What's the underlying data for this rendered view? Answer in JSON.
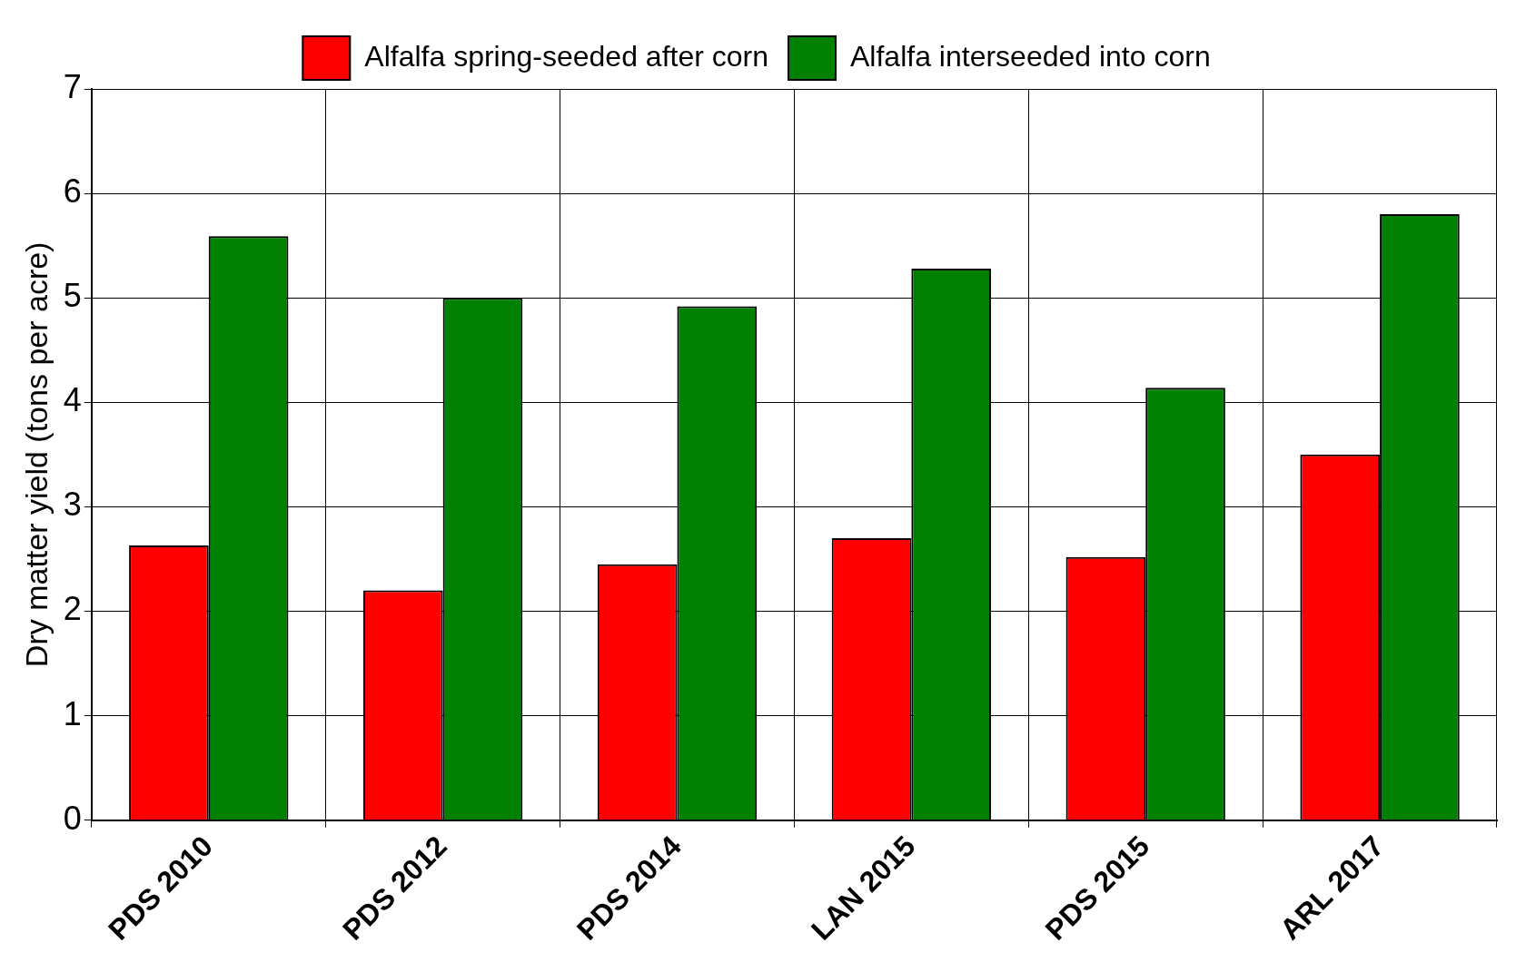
{
  "chart_data": {
    "type": "bar",
    "ylabel": "Dry matter yield (tons per acre)",
    "categories": [
      "PDS 2010",
      "PDS 2012",
      "PDS 2014",
      "LAN 2015",
      "PDS 2015",
      "ARL 2017"
    ],
    "series": [
      {
        "name": "Alfalfa spring-seeded after corn",
        "color": "#ff0000",
        "values": [
          2.63,
          2.2,
          2.45,
          2.7,
          2.52,
          3.5
        ]
      },
      {
        "name": "Alfalfa interseeded into corn",
        "color": "#008000",
        "values": [
          5.59,
          5.0,
          4.92,
          5.28,
          4.14,
          5.8
        ]
      }
    ],
    "ylim": [
      0,
      7
    ],
    "yticks": [
      0,
      1,
      2,
      3,
      4,
      5,
      6,
      7
    ],
    "grid": true,
    "legend": "top"
  }
}
